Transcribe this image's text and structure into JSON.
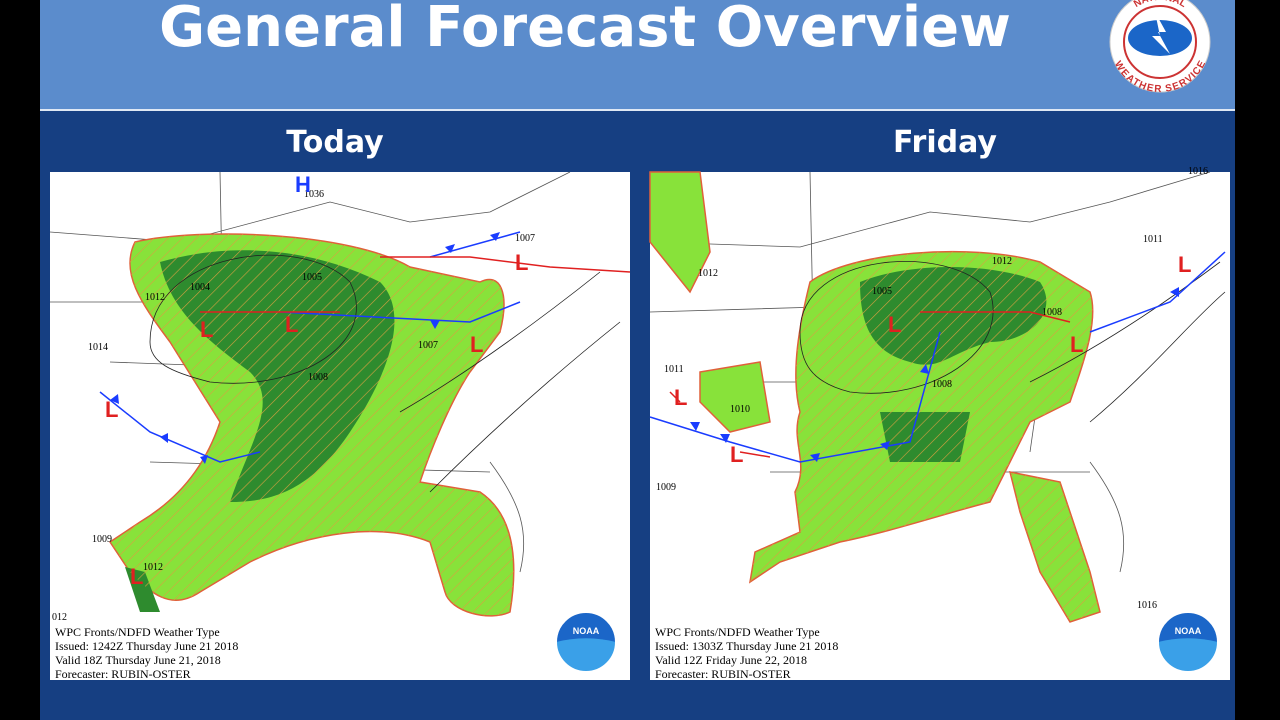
{
  "header": {
    "title": "General Forecast Overview",
    "logo": {
      "top_text": "NATIONAL",
      "bottom_text": "WEATHER SERVICE"
    }
  },
  "panels": [
    {
      "heading": "Today",
      "map": {
        "caption": [
          "WPC Fronts/NDFD Weather Type",
          "Issued: 1242Z Thursday June 21 2018",
          "Valid 18Z Thursday June 21, 2018",
          "Forecaster: RUBIN-OSTER"
        ],
        "pressure_labels": [
          "1036",
          "1012",
          "1004",
          "1005",
          "1014",
          "1007",
          "1008",
          "1007",
          "1009",
          "1012",
          "012"
        ],
        "centers": [
          "H",
          "L",
          "L",
          "L",
          "L",
          "L",
          "L"
        ],
        "logo": "NOAA"
      }
    },
    {
      "heading": "Friday",
      "map": {
        "caption": [
          "WPC Fronts/NDFD Weather Type",
          "Issued: 1303Z Thursday June 21 2018",
          "Valid 12Z Friday June 22, 2018",
          "Forecaster: RUBIN-OSTER"
        ],
        "pressure_labels": [
          "1012",
          "1011",
          "1005",
          "1012",
          "1011",
          "1010",
          "1008",
          "1009",
          "1016",
          "1016",
          "1008"
        ],
        "centers": [
          "L",
          "L",
          "L",
          "L",
          "L"
        ],
        "logo": "NOAA"
      }
    }
  ]
}
